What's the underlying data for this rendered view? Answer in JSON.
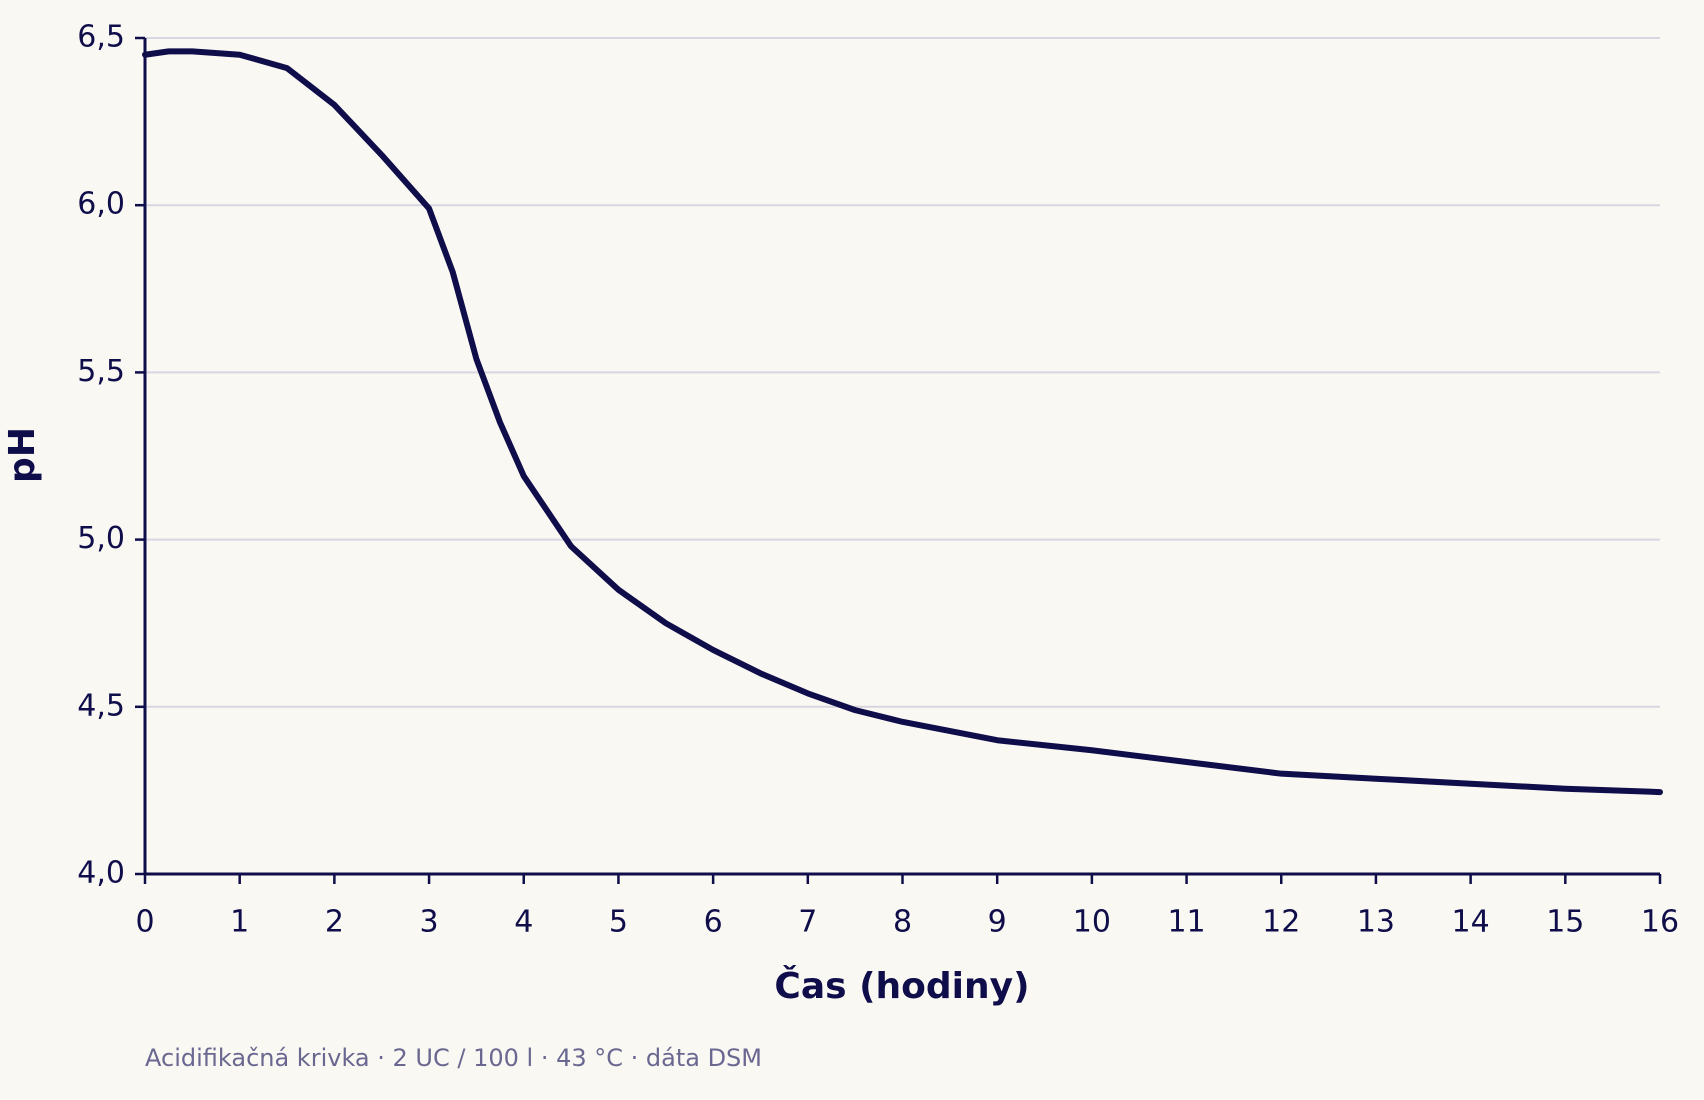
{
  "chart_data": {
    "type": "line",
    "x_label": "Čas (hodiny)",
    "y_label": "pH",
    "caption": "Acidifikačná krivka · 2 UC / 100 l · 43 °C · dáta DSM",
    "x": [
      0,
      0.25,
      0.5,
      1,
      1.5,
      2,
      2.5,
      3,
      3.25,
      3.5,
      3.75,
      4,
      4.5,
      5,
      5.5,
      6,
      6.5,
      7,
      7.5,
      8,
      9,
      10,
      11,
      12,
      13,
      14,
      15,
      16
    ],
    "series": [
      {
        "color": "#0f0d4a",
        "values": [
          6.45,
          6.46,
          6.46,
          6.45,
          6.41,
          6.3,
          6.15,
          5.99,
          5.8,
          5.54,
          5.35,
          5.19,
          4.98,
          4.85,
          4.75,
          4.67,
          4.6,
          4.54,
          4.49,
          4.455,
          4.4,
          4.37,
          4.335,
          4.3,
          4.285,
          4.27,
          4.255,
          4.245
        ]
      }
    ],
    "xlim": [
      0,
      16
    ],
    "xticks": [
      0,
      1,
      2,
      3,
      4,
      5,
      6,
      7,
      8,
      9,
      10,
      11,
      12,
      13,
      14,
      15,
      16
    ],
    "ylim": [
      4.0,
      6.5
    ],
    "yticks": [
      {
        "value": 4.0,
        "label": "4,0"
      },
      {
        "value": 4.5,
        "label": "4,5"
      },
      {
        "value": 5.0,
        "label": "5,0"
      },
      {
        "value": 5.5,
        "label": "5,5"
      },
      {
        "value": 6.0,
        "label": "6,0"
      },
      {
        "value": 6.5,
        "label": "6,5"
      }
    ],
    "grid": true
  }
}
